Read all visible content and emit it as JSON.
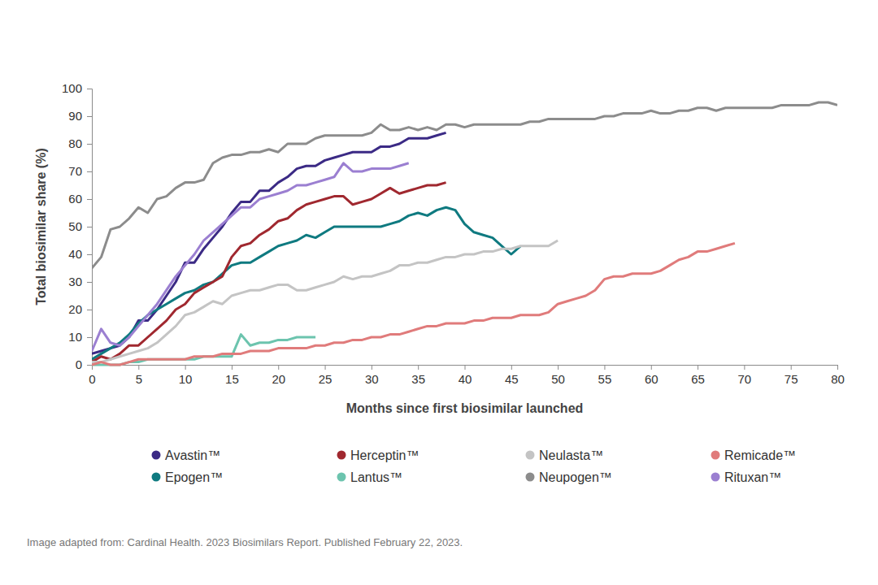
{
  "chart_data": {
    "type": "line",
    "x_label": "Months since first biosimilar launched",
    "y_label": "Total biosimilar share (%)",
    "source": "Image adapted from: Cardinal Health. 2023 Biosimilars Report. Published February 22, 2023.",
    "grid": false,
    "legend": "bottom",
    "xlim": [
      0,
      80
    ],
    "xticks": [
      0,
      5,
      10,
      15,
      20,
      25,
      30,
      35,
      40,
      45,
      50,
      55,
      60,
      65,
      70,
      75,
      80
    ],
    "ylim": [
      0,
      100
    ],
    "yticks": [
      0,
      10,
      20,
      30,
      40,
      50,
      60,
      70,
      80,
      90,
      100
    ],
    "x": [
      0,
      1,
      2,
      3,
      4,
      5,
      6,
      7,
      8,
      9,
      10,
      11,
      12,
      13,
      14,
      15,
      16,
      17,
      18,
      19,
      20,
      21,
      22,
      23,
      24,
      25,
      26,
      27,
      28,
      29,
      30,
      31,
      32,
      33,
      34,
      35,
      36,
      37,
      38,
      39,
      40,
      41,
      42,
      43,
      44,
      45,
      46,
      47,
      48,
      49,
      50,
      51,
      52,
      53,
      54,
      55,
      56,
      57,
      58,
      59,
      60,
      61,
      62,
      63,
      64,
      65,
      66,
      67,
      68,
      69,
      70,
      71,
      72,
      73,
      74,
      75,
      76,
      77,
      78,
      79,
      80
    ],
    "series": [
      {
        "name": "Avastin™",
        "color": "#3b2a85",
        "values": [
          4,
          5,
          6,
          7,
          10,
          16,
          16,
          20,
          25,
          30,
          37,
          37,
          42,
          46,
          50,
          55,
          59,
          59,
          63,
          63,
          66,
          68,
          71,
          72,
          72,
          74,
          75,
          76,
          77,
          77,
          77,
          79,
          79,
          80,
          82,
          82,
          82,
          83,
          84,
          null,
          null,
          null,
          null,
          null,
          null,
          null,
          null,
          null,
          null,
          null,
          null,
          null,
          null,
          null,
          null,
          null,
          null,
          null,
          null,
          null,
          null,
          null,
          null,
          null,
          null,
          null,
          null,
          null,
          null,
          null,
          null,
          null,
          null,
          null,
          null,
          null,
          null,
          null,
          null,
          null,
          null
        ]
      },
      {
        "name": "Epogen™",
        "color": "#0f7a80",
        "values": [
          2,
          4,
          6,
          8,
          11,
          15,
          18,
          20,
          22,
          24,
          26,
          27,
          29,
          30,
          33,
          36,
          37,
          37,
          39,
          41,
          43,
          44,
          45,
          47,
          46,
          48,
          50,
          50,
          50,
          50,
          50,
          50,
          51,
          52,
          54,
          55,
          54,
          56,
          57,
          56,
          51,
          48,
          47,
          46,
          43,
          40,
          43,
          null,
          null,
          null,
          null,
          null,
          null,
          null,
          null,
          null,
          null,
          null,
          null,
          null,
          null,
          null,
          null,
          null,
          null,
          null,
          null,
          null,
          null,
          null,
          null,
          null,
          null,
          null,
          null,
          null,
          null,
          null,
          null,
          null,
          null
        ]
      },
      {
        "name": "Herceptin™",
        "color": "#a0282f",
        "values": [
          1,
          3,
          2,
          4,
          7,
          7,
          10,
          13,
          16,
          20,
          22,
          26,
          28,
          30,
          32,
          39,
          43,
          44,
          47,
          49,
          52,
          53,
          56,
          58,
          59,
          60,
          61,
          61,
          58,
          59,
          60,
          62,
          64,
          62,
          63,
          64,
          65,
          65,
          66,
          null,
          null,
          null,
          null,
          null,
          null,
          null,
          null,
          null,
          null,
          null,
          null,
          null,
          null,
          null,
          null,
          null,
          null,
          null,
          null,
          null,
          null,
          null,
          null,
          null,
          null,
          null,
          null,
          null,
          null,
          null,
          null,
          null,
          null,
          null,
          null,
          null,
          null,
          null,
          null,
          null,
          null
        ]
      },
      {
        "name": "Lantus™",
        "color": "#6cc4ae",
        "values": [
          0,
          0,
          0,
          0,
          1,
          1,
          2,
          2,
          2,
          2,
          2,
          2,
          3,
          3,
          3,
          3,
          11,
          7,
          8,
          8,
          9,
          9,
          10,
          10,
          10,
          null,
          null,
          null,
          null,
          null,
          null,
          null,
          null,
          null,
          null,
          null,
          null,
          null,
          null,
          null,
          null,
          null,
          null,
          null,
          null,
          null,
          null,
          null,
          null,
          null,
          null,
          null,
          null,
          null,
          null,
          null,
          null,
          null,
          null,
          null,
          null,
          null,
          null,
          null,
          null,
          null,
          null,
          null,
          null,
          null,
          null,
          null,
          null,
          null,
          null,
          null,
          null,
          null,
          null,
          null,
          null
        ]
      },
      {
        "name": "Neulasta™",
        "color": "#c4c4c4",
        "values": [
          1,
          1,
          2,
          3,
          4,
          5,
          6,
          8,
          11,
          14,
          18,
          19,
          21,
          23,
          22,
          25,
          26,
          27,
          27,
          28,
          29,
          29,
          27,
          27,
          28,
          29,
          30,
          32,
          31,
          32,
          32,
          33,
          34,
          36,
          36,
          37,
          37,
          38,
          39,
          39,
          40,
          40,
          41,
          41,
          42,
          42,
          43,
          43,
          43,
          43,
          45,
          null,
          null,
          null,
          null,
          null,
          null,
          null,
          null,
          null,
          null,
          null,
          null,
          null,
          null,
          null,
          null,
          null,
          null,
          null,
          null,
          null,
          null,
          null,
          null,
          null,
          null,
          null,
          null,
          null,
          null
        ]
      },
      {
        "name": "Neupogen™",
        "color": "#8c8c8c",
        "values": [
          35,
          39,
          49,
          50,
          53,
          57,
          55,
          60,
          61,
          64,
          66,
          66,
          67,
          73,
          75,
          76,
          76,
          77,
          77,
          78,
          77,
          80,
          80,
          80,
          82,
          83,
          83,
          83,
          83,
          83,
          84,
          87,
          85,
          85,
          86,
          85,
          86,
          85,
          87,
          87,
          86,
          87,
          87,
          87,
          87,
          87,
          87,
          88,
          88,
          89,
          89,
          89,
          89,
          89,
          89,
          90,
          90,
          91,
          91,
          91,
          92,
          91,
          91,
          92,
          92,
          93,
          93,
          92,
          93,
          93,
          93,
          93,
          93,
          93,
          94,
          94,
          94,
          94,
          95,
          95,
          94
        ]
      },
      {
        "name": "Remicade™",
        "color": "#e07b7b",
        "values": [
          0,
          1,
          0,
          0,
          1,
          2,
          2,
          2,
          2,
          2,
          2,
          3,
          3,
          3,
          4,
          4,
          4,
          5,
          5,
          5,
          6,
          6,
          6,
          6,
          7,
          7,
          8,
          8,
          9,
          9,
          10,
          10,
          11,
          11,
          12,
          13,
          14,
          14,
          15,
          15,
          15,
          16,
          16,
          17,
          17,
          17,
          18,
          18,
          18,
          19,
          22,
          23,
          24,
          25,
          27,
          31,
          32,
          32,
          33,
          33,
          33,
          34,
          36,
          38,
          39,
          41,
          41,
          42,
          43,
          44,
          null,
          null,
          null,
          null,
          null,
          null,
          null,
          null,
          null,
          null,
          null
        ]
      },
      {
        "name": "Rituxan™",
        "color": "#9b7fd1",
        "values": [
          5,
          13,
          8,
          7,
          10,
          14,
          18,
          22,
          27,
          32,
          36,
          40,
          45,
          48,
          51,
          54,
          57,
          57,
          60,
          61,
          62,
          63,
          65,
          65,
          66,
          67,
          68,
          73,
          70,
          70,
          71,
          71,
          71,
          72,
          73,
          null,
          null,
          null,
          null,
          null,
          null,
          null,
          null,
          null,
          null,
          null,
          null,
          null,
          null,
          null,
          null,
          null,
          null,
          null,
          null,
          null,
          null,
          null,
          null,
          null,
          null,
          null,
          null,
          null,
          null,
          null,
          null,
          null,
          null,
          null,
          null,
          null,
          null,
          null,
          null,
          null,
          null,
          null,
          null,
          null,
          null
        ]
      }
    ]
  }
}
